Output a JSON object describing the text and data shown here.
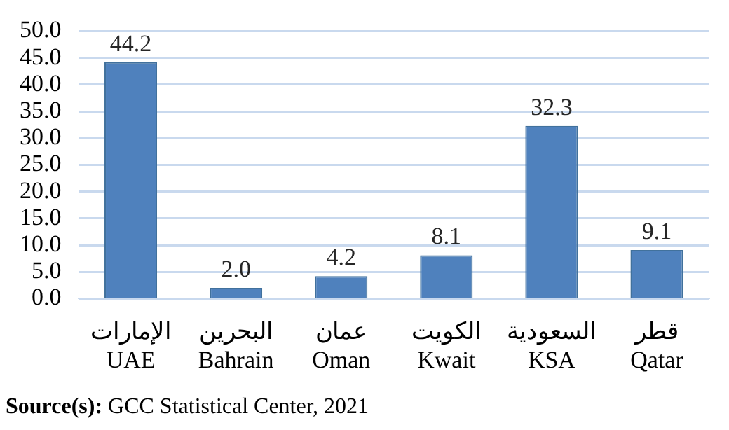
{
  "chart_data": {
    "type": "bar",
    "categories": [
      "الإمارات\nUAE",
      "البحرين\nBahrain",
      "عمان\nOman",
      "الكويت\nKwait",
      "السعودية\nKSA",
      "قطر\nQatar"
    ],
    "values": [
      44.2,
      2.0,
      4.2,
      8.1,
      32.3,
      9.1
    ],
    "value_labels": [
      "44.2",
      "2.0",
      "4.2",
      "8.1",
      "32.3",
      "9.1"
    ],
    "color": "#4f81bd",
    "ylim": [
      0,
      50
    ],
    "yticks": [
      {
        "value": 0,
        "label": "0.0"
      },
      {
        "value": 5,
        "label": "5.0"
      },
      {
        "value": 10,
        "label": "10.0"
      },
      {
        "value": 15,
        "label": "15.0"
      },
      {
        "value": 20,
        "label": "20.0"
      },
      {
        "value": 25,
        "label": "25.0"
      },
      {
        "value": 30,
        "label": "30.0"
      },
      {
        "value": 35,
        "label": "35.0"
      },
      {
        "value": 40,
        "label": "40.0"
      },
      {
        "value": 45,
        "label": "45.0"
      },
      {
        "value": 50,
        "label": "50.0"
      }
    ],
    "grid": "y",
    "legend": false,
    "annotations": [
      "Source(s): GCC Statistical Center, 2021"
    ]
  }
}
